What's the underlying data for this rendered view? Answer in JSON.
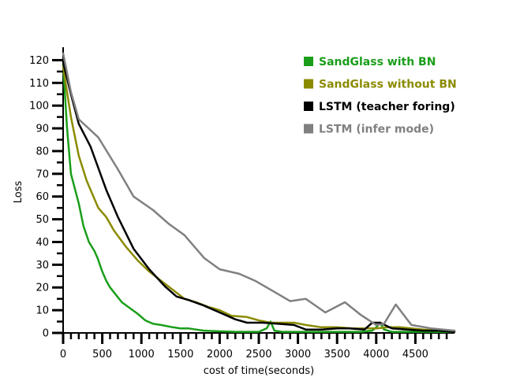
{
  "chart_data": {
    "type": "line",
    "xlabel": "cost of time(seconds)",
    "ylabel": "Loss",
    "xlim": [
      0,
      5000
    ],
    "ylim": [
      0,
      125
    ],
    "x_ticks": [
      0,
      500,
      1000,
      1500,
      2000,
      2500,
      3000,
      3500,
      4000,
      4500
    ],
    "y_ticks": [
      0,
      10,
      20,
      30,
      40,
      50,
      60,
      70,
      80,
      90,
      100,
      110,
      120
    ],
    "grid": false,
    "legend_position": "top-right",
    "series": [
      {
        "name": "SandGlass with BN",
        "color": "#1a9e1a",
        "x": [
          0,
          50,
          100,
          200,
          260,
          330,
          400,
          440,
          500,
          550,
          600,
          680,
          750,
          850,
          950,
          1050,
          1150,
          1250,
          1400,
          1500,
          1600,
          1700,
          1800,
          1950,
          2100,
          2200,
          2300,
          2400,
          2500,
          2600,
          2650,
          2700,
          2800,
          2900,
          3000,
          3200,
          3400,
          3600,
          3800,
          3950,
          4000,
          4050,
          4100,
          4200,
          4300,
          4400,
          4500,
          4700,
          5000
        ],
        "y": [
          118,
          90,
          70,
          57,
          47,
          40,
          36,
          33,
          27,
          23,
          20,
          16.5,
          13.5,
          11,
          8.5,
          5.5,
          4,
          3.5,
          2.5,
          2,
          2,
          1.5,
          1,
          0.8,
          0.6,
          0.5,
          0.5,
          0.5,
          0.5,
          2,
          5,
          1,
          0.5,
          0.5,
          0.5,
          0.5,
          0.5,
          0.5,
          0.5,
          1,
          2.5,
          4.5,
          1.5,
          0.5,
          0.5,
          0.5,
          0.5,
          0.5,
          0.5
        ]
      },
      {
        "name": "SandGlass without BN",
        "color": "#8b8b00",
        "x": [
          0,
          100,
          200,
          300,
          350,
          450,
          550,
          650,
          800,
          950,
          1100,
          1250,
          1400,
          1550,
          1700,
          1850,
          2000,
          2150,
          2350,
          2500,
          2650,
          2800,
          2950,
          3100,
          3300,
          3500,
          3700,
          3850,
          4000,
          4150,
          4300,
          4450,
          4600,
          4800,
          5000
        ],
        "y": [
          117,
          95,
          78,
          67,
          63,
          55,
          51,
          45,
          38,
          32,
          27,
          23,
          19,
          15,
          13.5,
          11.5,
          10,
          7.5,
          7,
          5.5,
          4.5,
          4.5,
          4.5,
          3.5,
          2.5,
          2.5,
          2,
          2,
          2,
          2.5,
          2.5,
          2,
          1.5,
          1,
          1
        ]
      },
      {
        "name": "LSTM (teacher foring)",
        "color": "#000000",
        "x": [
          0,
          100,
          200,
          350,
          550,
          700,
          900,
          1100,
          1300,
          1450,
          1600,
          1800,
          2000,
          2200,
          2350,
          2550,
          2750,
          2950,
          3100,
          3300,
          3500,
          3650,
          3850,
          3950,
          4050,
          4200,
          4400,
          4600,
          4800,
          5000
        ],
        "y": [
          119,
          105,
          92,
          82,
          63,
          51,
          37,
          28,
          20.5,
          16,
          14.5,
          12,
          9,
          6,
          4.5,
          4.5,
          4,
          3.5,
          1.5,
          1.5,
          2,
          2,
          1.5,
          4.5,
          4.5,
          2,
          1.5,
          1,
          1,
          0.5
        ]
      },
      {
        "name": "LSTM (infer mode)",
        "color": "#808080",
        "x": [
          0,
          100,
          200,
          450,
          700,
          900,
          1150,
          1350,
          1550,
          1800,
          2000,
          2250,
          2450,
          2650,
          2900,
          3100,
          3350,
          3600,
          3800,
          4000,
          4100,
          4250,
          4450,
          4700,
          5000
        ],
        "y": [
          123,
          106,
          94,
          86,
          72,
          60,
          54,
          48,
          43,
          33,
          28,
          26,
          23,
          19,
          14,
          15,
          9,
          13.5,
          8,
          3.5,
          4,
          12.5,
          3.5,
          2,
          1
        ]
      }
    ]
  }
}
